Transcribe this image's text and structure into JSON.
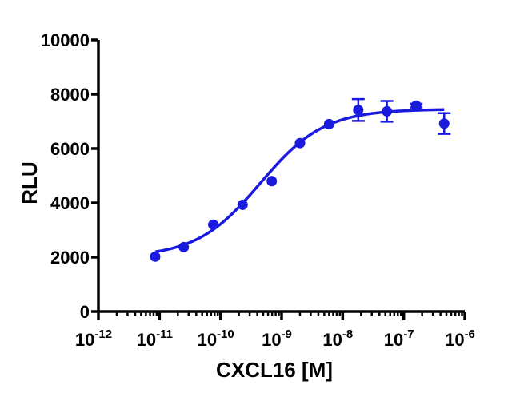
{
  "chart_data": {
    "type": "scatter",
    "xlabel": "CXCL16 [M]",
    "ylabel": "RLU",
    "x_scale": "log",
    "xlim": [
      1e-12,
      1e-06
    ],
    "ylim": [
      0,
      10000
    ],
    "x_ticks": [
      {
        "base": "10",
        "exp": "-12",
        "value": 1e-12
      },
      {
        "base": "10",
        "exp": "-11",
        "value": 1e-11
      },
      {
        "base": "10",
        "exp": "-10",
        "value": 1e-10
      },
      {
        "base": "10",
        "exp": "-9",
        "value": 1e-09
      },
      {
        "base": "10",
        "exp": "-8",
        "value": 1e-08
      },
      {
        "base": "10",
        "exp": "-7",
        "value": 1e-07
      },
      {
        "base": "10",
        "exp": "-6",
        "value": 1e-06
      }
    ],
    "y_ticks": [
      {
        "label": "0",
        "value": 0
      },
      {
        "label": "2000",
        "value": 2000
      },
      {
        "label": "4000",
        "value": 4000
      },
      {
        "label": "6000",
        "value": 6000
      },
      {
        "label": "8000",
        "value": 8000
      },
      {
        "label": "10000",
        "value": 10000
      }
    ],
    "grid": false,
    "color": "#1a1adf",
    "series": [
      {
        "points": [
          {
            "x": 8.5e-12,
            "y": 2020
          },
          {
            "x": 2.5e-11,
            "y": 2370
          },
          {
            "x": 7.6e-11,
            "y": 3200
          },
          {
            "x": 2.3e-10,
            "y": 3930
          },
          {
            "x": 6.9e-10,
            "y": 4800
          },
          {
            "x": 2e-09,
            "y": 6200
          },
          {
            "x": 6e-09,
            "y": 6900
          },
          {
            "x": 1.8e-08,
            "y": 7420,
            "err": 400
          },
          {
            "x": 5.3e-08,
            "y": 7370,
            "err": 380
          },
          {
            "x": 1.6e-07,
            "y": 7580,
            "err": 70
          },
          {
            "x": 4.6e-07,
            "y": 6920,
            "err": 380
          }
        ],
        "fit": {
          "model": "four-parameter logistic",
          "bottom": 2000,
          "top": 7450,
          "log_ec50": -9.35,
          "hill": 0.83,
          "x_range": [
            8.5e-12,
            4.6e-07
          ]
        }
      }
    ]
  }
}
